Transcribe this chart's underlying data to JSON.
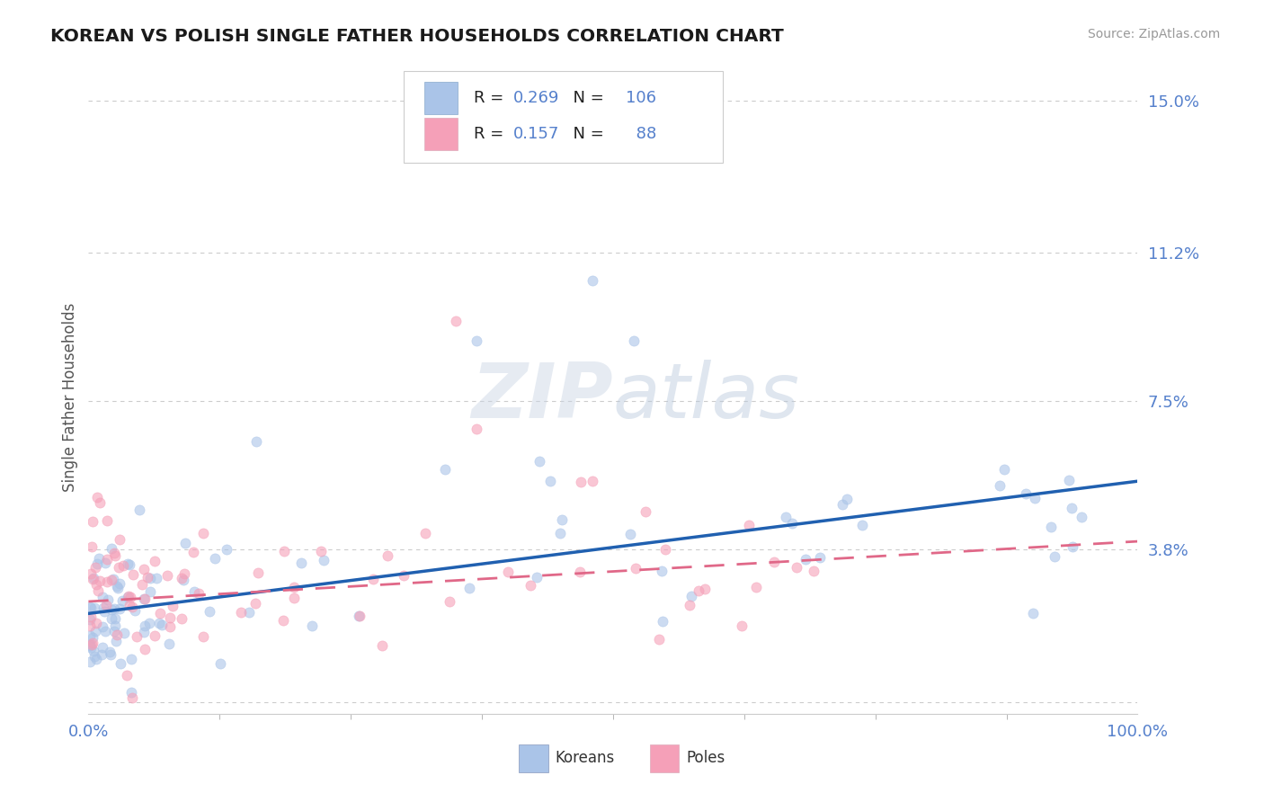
{
  "title": "KOREAN VS POLISH SINGLE FATHER HOUSEHOLDS CORRELATION CHART",
  "source": "Source: ZipAtlas.com",
  "ylabel": "Single Father Households",
  "xlim": [
    0,
    100
  ],
  "ylim": [
    -0.3,
    15.5
  ],
  "yticks": [
    0,
    3.8,
    7.5,
    11.2,
    15.0
  ],
  "ytick_labels": [
    "",
    "3.8%",
    "7.5%",
    "11.2%",
    "15.0%"
  ],
  "xtick_labels": [
    "0.0%",
    "100.0%"
  ],
  "kor_R": "0.269",
  "kor_N": "106",
  "pol_R": "0.157",
  "pol_N": "88",
  "kor_scatter_color": "#aac4e8",
  "pol_scatter_color": "#f5a0b8",
  "kor_line_color": "#2060b0",
  "pol_line_color": "#e06888",
  "kor_trend": [
    0,
    2.2,
    100,
    5.5
  ],
  "pol_trend": [
    0,
    2.5,
    100,
    4.0
  ],
  "title_color": "#1a1a1a",
  "source_color": "#999999",
  "tick_color": "#5580cc",
  "label_color": "#222222",
  "ylabel_color": "#555555",
  "grid_color": "#cccccc",
  "watermark_color": "#c8d8e8",
  "background": "#ffffff",
  "scatter_alpha": 0.6,
  "scatter_size": 65
}
